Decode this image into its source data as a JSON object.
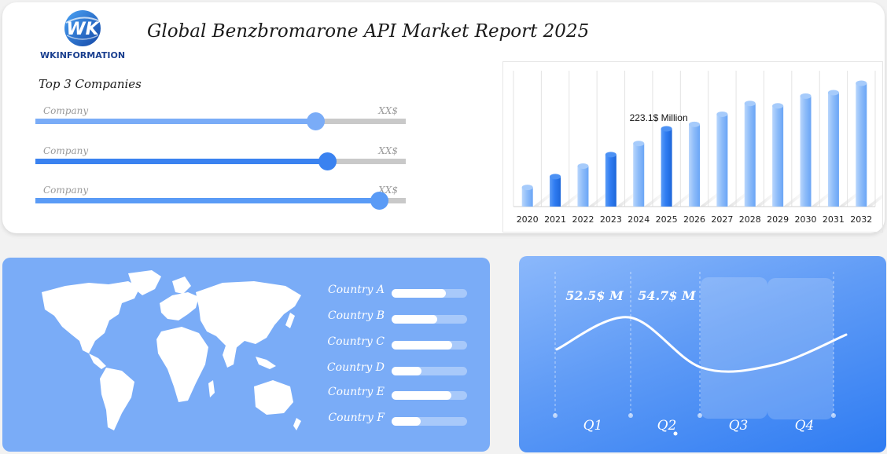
{
  "header": {
    "logo_text": "WKINFORMATION",
    "title": "Global Benzbromarone API Market Report 2025"
  },
  "companies": {
    "title": "Top 3 Companies",
    "items": [
      {
        "label": "Company",
        "value": "XX$",
        "level": 0.755,
        "color": "#7aacf7"
      },
      {
        "label": "Company",
        "value": "XX$",
        "level": 0.788,
        "color": "#3a82f0"
      },
      {
        "label": "Company",
        "value": "XX$",
        "level": 0.928,
        "color": "#5a9bf6"
      }
    ]
  },
  "chart_data": [
    {
      "type": "bar",
      "categories": [
        "2020",
        "2021",
        "2022",
        "2023",
        "2024",
        "2025",
        "2026",
        "2027",
        "2028",
        "2029",
        "2030",
        "2031",
        "2032"
      ],
      "values": [
        55,
        86,
        116,
        149,
        181,
        223.1,
        236,
        265,
        296,
        289,
        317,
        327,
        354
      ],
      "annotation": {
        "category": "2025",
        "text": "223.1$ Million"
      },
      "highlight_colors": [
        "#2f7cf2",
        "#8fbdf9"
      ],
      "ylim": [
        0,
        390
      ],
      "grid": true
    },
    {
      "type": "line",
      "categories": [
        "Q1",
        "Q2",
        "Q3",
        "Q4"
      ],
      "x": [
        0,
        0.25,
        0.5,
        0.75,
        1
      ],
      "values": [
        2,
        5.5,
        0,
        0.3,
        3.6
      ],
      "labels": [
        "52.5$ M",
        "54.7$ M"
      ]
    }
  ],
  "regions": {
    "items": [
      {
        "label": "Country A",
        "level": 0.72
      },
      {
        "label": "Country B",
        "level": 0.6
      },
      {
        "label": "Country C",
        "level": 0.8
      },
      {
        "label": "Country D",
        "level": 0.4
      },
      {
        "label": "Country E",
        "level": 0.79
      },
      {
        "label": "Country F",
        "level": 0.39
      }
    ]
  }
}
